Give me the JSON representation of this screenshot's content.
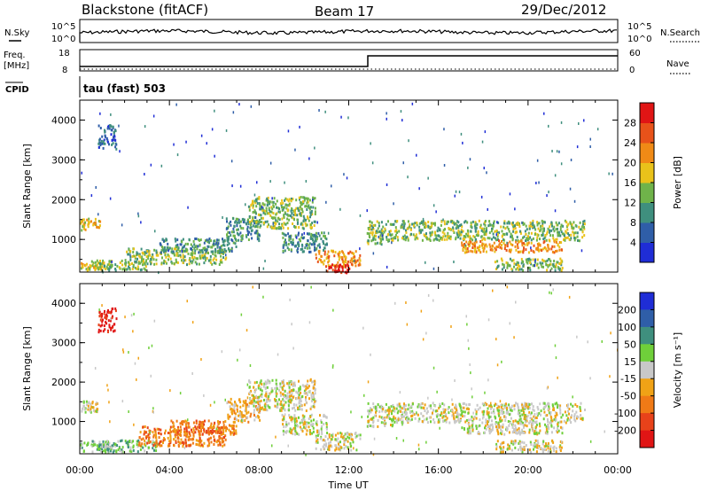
{
  "header": {
    "station": "Blackstone (fitACF)",
    "beam": "Beam 17",
    "date": "29/Dec/2012"
  },
  "top_panels": {
    "nsky_label": "N.Sky",
    "nsky_tick_hi": "10^5",
    "nsky_tick_lo": "10^0",
    "nsearch_label": "N.Search",
    "nsearch_tick_hi": "10^5",
    "nsearch_tick_lo": "10^0",
    "freq_label": "Freq.",
    "freq_unit": "[MHz]",
    "freq_tick_hi": "18",
    "freq_tick_lo": "8",
    "nave_label": "Nave",
    "nave_tick_hi": "60",
    "nave_tick_lo": "0",
    "cpid_label": "CPID",
    "cpid_value": "tau (fast) 503"
  },
  "chart_data": [
    {
      "type": "heatmap",
      "name": "power",
      "ylabel": "Slant Range [km]",
      "yticks": [
        "1000",
        "2000",
        "3000",
        "4000"
      ],
      "ylim": [
        180,
        4500
      ],
      "xlim": [
        0,
        24
      ],
      "colorbar_label": "Power [dB]",
      "colorbar_ticks": [
        "4",
        "8",
        "12",
        "16",
        "20",
        "24",
        "28"
      ],
      "colorbar_colors": [
        "#1f2dd6",
        "#2f5ea8",
        "#3f8f7e",
        "#6fb34a",
        "#e9c21a",
        "#f08a16",
        "#e8521a",
        "#e01515"
      ],
      "regions": [
        {
          "t0": 0.0,
          "t1": 1.0,
          "r0": 250,
          "r1": 450,
          "level": 4
        },
        {
          "t0": 0.0,
          "t1": 0.9,
          "r0": 1250,
          "r1": 1550,
          "level": 4
        },
        {
          "t0": 0.8,
          "t1": 1.6,
          "r0": 3300,
          "r1": 3900,
          "level": 1
        },
        {
          "t0": 0.5,
          "t1": 3.0,
          "r0": 250,
          "r1": 500,
          "level": 3
        },
        {
          "t0": 2.0,
          "t1": 6.5,
          "r0": 400,
          "r1": 800,
          "level": 3
        },
        {
          "t0": 3.5,
          "t1": 7.0,
          "r0": 700,
          "r1": 1050,
          "level": 2
        },
        {
          "t0": 6.5,
          "t1": 8.0,
          "r0": 1000,
          "r1": 1600,
          "level": 2
        },
        {
          "t0": 7.5,
          "t1": 10.5,
          "r0": 1300,
          "r1": 2100,
          "level": 3
        },
        {
          "t0": 9.0,
          "t1": 11.0,
          "r0": 700,
          "r1": 1200,
          "level": 2
        },
        {
          "t0": 10.5,
          "t1": 12.5,
          "r0": 350,
          "r1": 750,
          "level": 5
        },
        {
          "t0": 11.0,
          "t1": 12.0,
          "r0": 180,
          "r1": 400,
          "level": 7
        },
        {
          "t0": 12.8,
          "t1": 14.0,
          "r0": 900,
          "r1": 1500,
          "level": 3
        },
        {
          "t0": 14.0,
          "t1": 22.5,
          "r0": 1000,
          "r1": 1500,
          "level": 3
        },
        {
          "t0": 17.0,
          "t1": 21.5,
          "r0": 700,
          "r1": 1000,
          "level": 5
        },
        {
          "t0": 18.5,
          "t1": 21.5,
          "r0": 250,
          "r1": 550,
          "level": 3
        }
      ]
    },
    {
      "type": "heatmap",
      "name": "velocity",
      "ylabel": "Slant Range [km]",
      "yticks": [
        "1000",
        "2000",
        "3000",
        "4000"
      ],
      "ylim": [
        180,
        4500
      ],
      "xlim": [
        0,
        24
      ],
      "xticks": [
        "00:00",
        "04:00",
        "08:00",
        "12:00",
        "16:00",
        "20:00",
        "00:00"
      ],
      "xlabel": "Time UT",
      "colorbar_label": "Velocity [m s⁻¹]",
      "colorbar_ticks": [
        "200",
        "100",
        "50",
        "15",
        "-15",
        "-50",
        "-100",
        "-200"
      ],
      "colorbar_colors": [
        "#1f2dd6",
        "#2f5ea8",
        "#3f8f7e",
        "#6fcf3a",
        "#c8c8c8",
        "#f0a216",
        "#f07a16",
        "#e8421a",
        "#e01515"
      ],
      "regions": [
        {
          "t0": 0.0,
          "t1": 1.5,
          "r0": 250,
          "r1": 500,
          "level": 3
        },
        {
          "t0": 0.0,
          "t1": 0.8,
          "r0": 1250,
          "r1": 1550,
          "level": 4
        },
        {
          "t0": 0.8,
          "t1": 1.6,
          "r0": 3300,
          "r1": 3900,
          "level": 8
        },
        {
          "t0": 0.5,
          "t1": 3.5,
          "r0": 250,
          "r1": 550,
          "level": 3
        },
        {
          "t0": 2.5,
          "t1": 6.5,
          "r0": 400,
          "r1": 900,
          "level": 6
        },
        {
          "t0": 4.0,
          "t1": 7.0,
          "r0": 700,
          "r1": 1050,
          "level": 6
        },
        {
          "t0": 6.5,
          "t1": 8.0,
          "r0": 1000,
          "r1": 1600,
          "level": 5
        },
        {
          "t0": 7.5,
          "t1": 10.5,
          "r0": 1300,
          "r1": 2100,
          "level": 4
        },
        {
          "t0": 9.0,
          "t1": 11.0,
          "r0": 700,
          "r1": 1200,
          "level": 4
        },
        {
          "t0": 10.5,
          "t1": 12.5,
          "r0": 300,
          "r1": 750,
          "level": 4
        },
        {
          "t0": 12.8,
          "t1": 14.0,
          "r0": 900,
          "r1": 1500,
          "level": 4
        },
        {
          "t0": 14.0,
          "t1": 22.5,
          "r0": 1000,
          "r1": 1500,
          "level": 4
        },
        {
          "t0": 17.0,
          "t1": 21.5,
          "r0": 700,
          "r1": 1000,
          "level": 4
        },
        {
          "t0": 18.5,
          "t1": 21.5,
          "r0": 250,
          "r1": 550,
          "level": 4
        }
      ]
    }
  ]
}
